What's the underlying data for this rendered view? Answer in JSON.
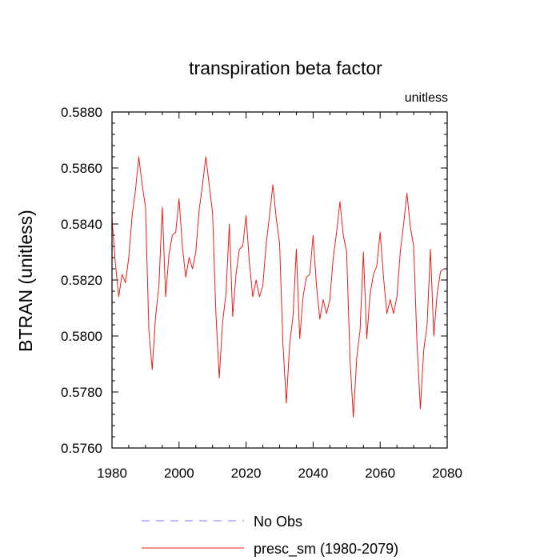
{
  "chart_data": {
    "type": "line",
    "title": "transpiration beta factor",
    "units_label": "unitless",
    "xlabel": "",
    "ylabel": "BTRAN  (unitless)",
    "xlim": [
      1980,
      2080
    ],
    "ylim": [
      0.576,
      0.588
    ],
    "x_ticks": [
      1980,
      2000,
      2020,
      2040,
      2060,
      2080
    ],
    "y_ticks": [
      0.576,
      0.578,
      0.58,
      0.582,
      0.584,
      0.586,
      0.588
    ],
    "y_tick_labels": [
      "0.5760",
      "0.5780",
      "0.5800",
      "0.5820",
      "0.5840",
      "0.5860",
      "0.5880"
    ],
    "x_minor_step": 5,
    "y_minor_step": 0.0004,
    "legend": [
      {
        "label": "No Obs",
        "color": "#7b7bff",
        "dashed": true
      },
      {
        "label": "presc_sm (1980-2079)",
        "color": "#e8201a",
        "dashed": false
      }
    ],
    "series": [
      {
        "name": "presc_sm (1980-2079)",
        "color": "#e8201a",
        "x": [
          1980,
          1981,
          1982,
          1983,
          1984,
          1985,
          1986,
          1987,
          1988,
          1989,
          1990,
          1991,
          1992,
          1993,
          1994,
          1995,
          1996,
          1997,
          1998,
          1999,
          2000,
          2001,
          2002,
          2003,
          2004,
          2005,
          2006,
          2007,
          2008,
          2009,
          2010,
          2011,
          2012,
          2013,
          2014,
          2015,
          2016,
          2017,
          2018,
          2019,
          2020,
          2021,
          2022,
          2023,
          2024,
          2025,
          2026,
          2027,
          2028,
          2029,
          2030,
          2031,
          2032,
          2033,
          2034,
          2035,
          2036,
          2037,
          2038,
          2039,
          2040,
          2041,
          2042,
          2043,
          2044,
          2045,
          2046,
          2047,
          2048,
          2049,
          2050,
          2051,
          2052,
          2053,
          2054,
          2055,
          2056,
          2057,
          2058,
          2059,
          2060,
          2061,
          2062,
          2063,
          2064,
          2065,
          2066,
          2067,
          2068,
          2069,
          2070,
          2071,
          2072,
          2073,
          2074,
          2075,
          2076,
          2077,
          2078,
          2079
        ],
        "values": [
          0.5842,
          0.5826,
          0.5814,
          0.5822,
          0.5819,
          0.5828,
          0.5843,
          0.5852,
          0.5864,
          0.5854,
          0.5846,
          0.5802,
          0.5788,
          0.5807,
          0.5818,
          0.5846,
          0.5814,
          0.5829,
          0.5836,
          0.5837,
          0.5849,
          0.5832,
          0.5821,
          0.5828,
          0.5824,
          0.583,
          0.5845,
          0.5854,
          0.5864,
          0.5854,
          0.5844,
          0.5808,
          0.5785,
          0.5805,
          0.5815,
          0.584,
          0.5807,
          0.5822,
          0.5831,
          0.5832,
          0.5843,
          0.5826,
          0.5814,
          0.582,
          0.5814,
          0.5818,
          0.5833,
          0.5843,
          0.5854,
          0.5842,
          0.5833,
          0.5797,
          0.5776,
          0.5797,
          0.5807,
          0.5831,
          0.5799,
          0.5814,
          0.5821,
          0.5822,
          0.5836,
          0.5818,
          0.5806,
          0.5813,
          0.5808,
          0.5813,
          0.5828,
          0.5837,
          0.5848,
          0.5836,
          0.583,
          0.5792,
          0.5771,
          0.5792,
          0.5802,
          0.583,
          0.5799,
          0.5815,
          0.5822,
          0.5825,
          0.5837,
          0.5821,
          0.5808,
          0.5813,
          0.5808,
          0.5814,
          0.583,
          0.584,
          0.5851,
          0.5839,
          0.5832,
          0.5797,
          0.5774,
          0.5795,
          0.5804,
          0.5831,
          0.58,
          0.5815,
          0.5823,
          0.5824
        ]
      }
    ]
  }
}
